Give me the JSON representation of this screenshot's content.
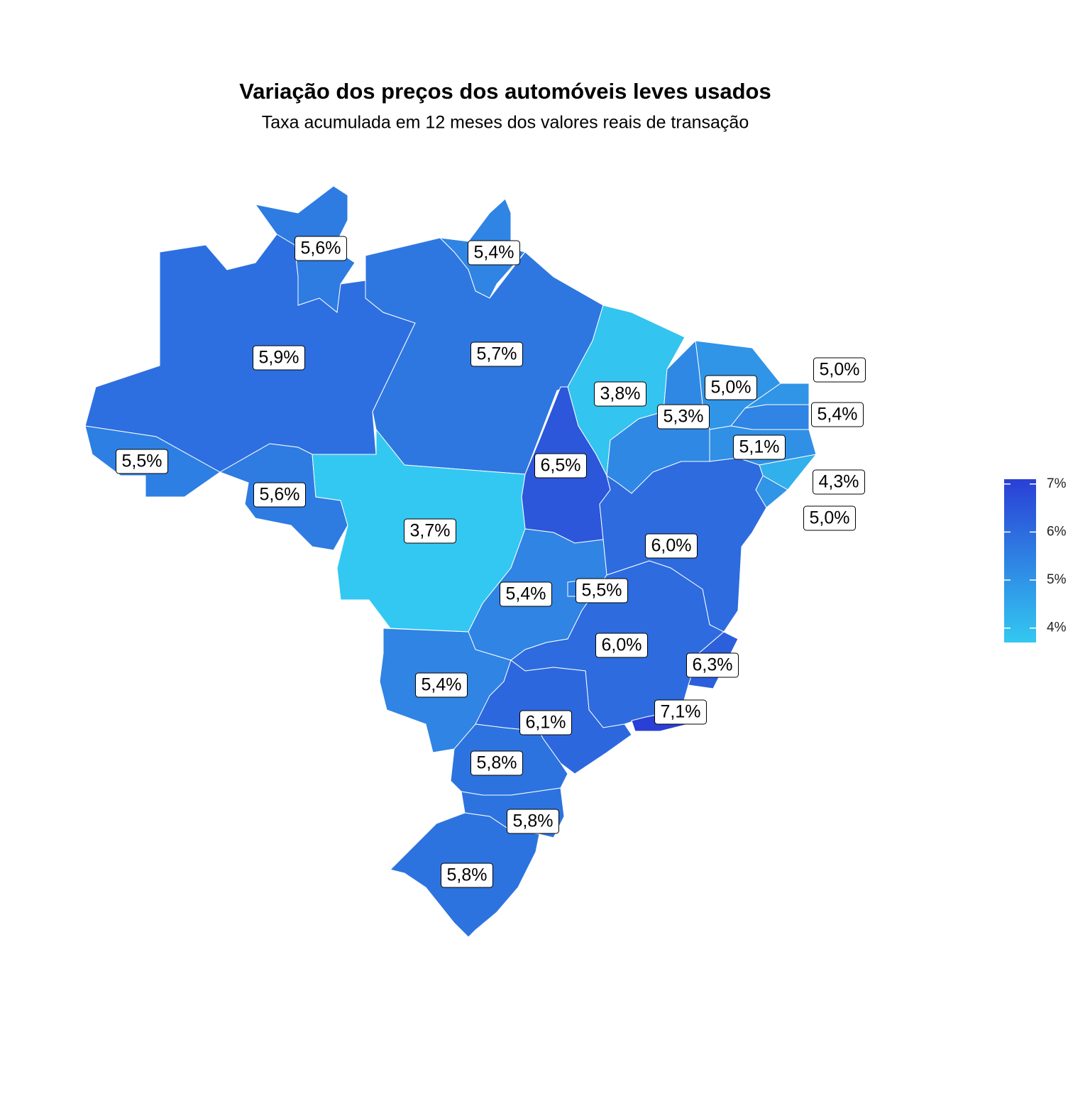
{
  "chart_data": {
    "type": "choropleth",
    "title": "Variação dos preços dos automóveis leves usados",
    "subtitle": "Taxa acumulada em 12 meses dos valores reais de transação",
    "values": [
      5.6,
      5.4,
      5.9,
      5.7,
      3.8,
      5.0,
      5.0,
      5.3,
      5.4,
      5.1,
      4.3,
      5.0,
      5.5,
      5.6,
      6.5,
      3.7,
      6.0,
      5.4,
      5.5,
      6.0,
      6.3,
      5.4,
      6.1,
      7.1,
      5.8,
      5.8,
      5.8
    ],
    "value_labels": [
      "5,6%",
      "5,4%",
      "5,9%",
      "5,7%",
      "3,8%",
      "5,0%",
      "5,0%",
      "5,3%",
      "5,4%",
      "5,1%",
      "4,3%",
      "5,0%",
      "5,5%",
      "5,6%",
      "6,5%",
      "3,7%",
      "6,0%",
      "5,4%",
      "5,5%",
      "6,0%",
      "6,3%",
      "5,4%",
      "6,1%",
      "7,1%",
      "5,8%",
      "5,8%",
      "5,8%"
    ],
    "colors": [
      "#33c8f1",
      "#2a3fd6"
    ],
    "legend_ticks": [
      {
        "value": 4,
        "label": "4%"
      },
      {
        "value": 5,
        "label": "5%"
      },
      {
        "value": 6,
        "label": "6%"
      },
      {
        "value": 7,
        "label": "7%"
      }
    ],
    "legend": "right"
  }
}
